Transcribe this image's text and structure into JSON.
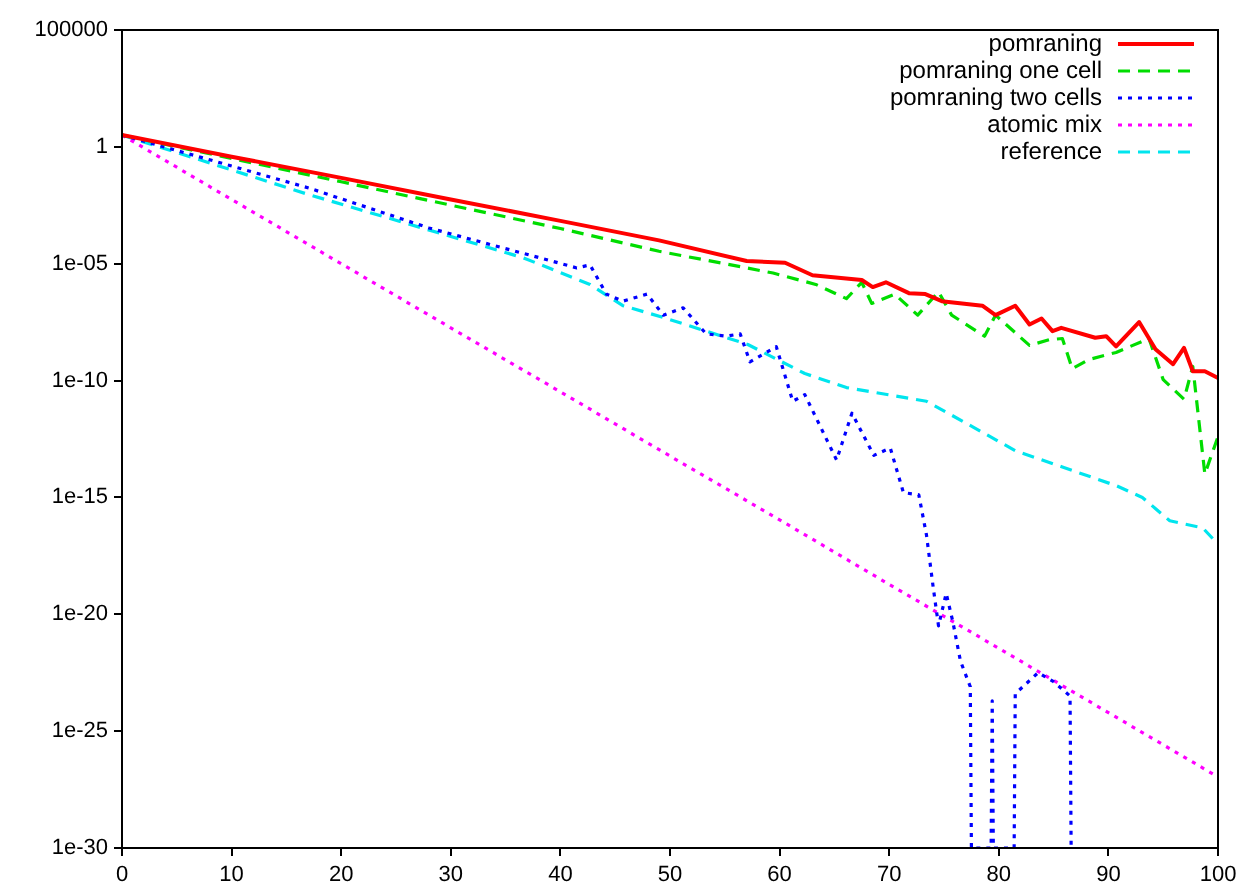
{
  "chart_data": {
    "type": "line",
    "log": "y",
    "grid": false,
    "legend": "top right",
    "marker": "none",
    "xlim": [
      0,
      100
    ],
    "xticks": [
      0,
      10,
      20,
      30,
      40,
      50,
      60,
      70,
      80,
      90,
      100
    ],
    "ylim": [
      1e-30,
      100000
    ],
    "yticks": [
      {
        "value": 1e-30,
        "label": "1e-30"
      },
      {
        "value": 1e-25,
        "label": "1e-25"
      },
      {
        "value": 1e-20,
        "label": "1e-20"
      },
      {
        "value": 1e-15,
        "label": "1e-15"
      },
      {
        "value": 1e-10,
        "label": "1e-10"
      },
      {
        "value": 1e-05,
        "label": "1e-05"
      },
      1,
      100000
    ],
    "series": [
      {
        "name": "pomraning",
        "color": "#ff0000",
        "line_style": "solid",
        "x": [
          0,
          10,
          20,
          30,
          40,
          49,
          57,
          60.5,
          63,
          67.5,
          68.5,
          69.7,
          71.8,
          73.3,
          74.8,
          78.5,
          79.7,
          81.5,
          82.8,
          83.9,
          84.9,
          85.7,
          88.8,
          89.8,
          90.7,
          92.8,
          94.3,
          95.9,
          96.9,
          97.7,
          98.8,
          100
        ],
        "values": [
          3.2,
          0.38,
          0.047,
          0.0056,
          0.00068,
          0.0001,
          1.3e-05,
          1.1e-05,
          3.2e-06,
          2e-06,
          1e-06,
          1.6e-06,
          5.5e-07,
          5e-07,
          2.5e-07,
          1.6e-07,
          6.3e-08,
          1.6e-07,
          2.5e-08,
          4.5e-08,
          1.3e-08,
          1.8e-08,
          6.8e-09,
          7.9e-09,
          2.9e-09,
          3.2e-08,
          2.2e-09,
          5e-10,
          2.5e-09,
          2.5e-10,
          2.5e-10,
          1.3e-10
        ]
      },
      {
        "name": "pomraning one cell",
        "color": "#00dd00",
        "line_style": "dashed",
        "x": [
          0,
          10,
          20,
          30,
          40,
          49,
          55,
          59.4,
          63.3,
          66.1,
          67.5,
          68.4,
          70.5,
          72.6,
          74.5,
          75.7,
          78.7,
          79.7,
          82.8,
          84.6,
          85.8,
          86.7,
          88.2,
          90.7,
          93.7,
          95,
          96.9,
          97.7,
          98.8,
          100
        ],
        "values": [
          3.2,
          0.32,
          0.032,
          0.0032,
          0.00032,
          3.4e-05,
          1e-05,
          4e-06,
          1.3e-06,
          3.2e-07,
          1.6e-06,
          2e-07,
          5e-07,
          6.3e-08,
          6.3e-07,
          6.3e-08,
          7.9e-09,
          6.3e-08,
          3.2e-09,
          5.6e-09,
          6.3e-09,
          3.2e-10,
          7.9e-10,
          1.6e-09,
          6.3e-09,
          1.1e-10,
          1.6e-11,
          4e-10,
          1e-14,
          4e-13
        ]
      },
      {
        "name": "pomraning two cells",
        "color": "#0000ff",
        "line_style": "dotted",
        "x": [
          0,
          8,
          17.1,
          28,
          33,
          38.1,
          41.5,
          42.7,
          44.2,
          45.7,
          47.9,
          49.4,
          51.2,
          53.3,
          55.1,
          56.4,
          57.3,
          59.7,
          61.2,
          62.3,
          65.2,
          66.6,
          68.6,
          70.1,
          71.3,
          72.7,
          73.4,
          74,
          74.5,
          75.2,
          75.8,
          76.5,
          77.4,
          77.5,
          79.3,
          79.4,
          79.5,
          81.4,
          81.5,
          83.6,
          85,
          86.5,
          86.6
        ],
        "values": [
          3.2,
          0.28,
          0.017,
          0.00034,
          7.9e-05,
          1.8e-05,
          6.6e-06,
          8.9e-06,
          5e-07,
          2.5e-07,
          5e-07,
          6.3e-08,
          1.3e-07,
          1e-08,
          7.9e-09,
          1e-08,
          6.3e-10,
          2.8e-09,
          1.3e-11,
          2.5e-11,
          4e-14,
          4e-12,
          6.3e-14,
          1.3e-13,
          1.6e-15,
          1.3e-15,
          2.5e-17,
          1.6e-19,
          3.2e-21,
          7.9e-20,
          5e-21,
          1e-22,
          7.9e-24,
          1e-30,
          1e-30,
          2e-24,
          1e-30,
          1e-30,
          4e-24,
          3.2e-23,
          1.3e-23,
          3.2e-24,
          1e-30
        ]
      },
      {
        "name": "atomic mix",
        "color": "#ff00ff",
        "line_style": "dotted",
        "x": [
          0,
          10,
          20,
          30,
          40,
          50,
          60,
          70,
          80,
          90,
          100
        ],
        "values": [
          3.2,
          0.0056,
          1e-05,
          1.8e-08,
          3.3e-11,
          5.9e-14,
          1.1e-16,
          1.9e-19,
          3.5e-22,
          6.2e-25,
          1.1e-27
        ]
      },
      {
        "name": "reference",
        "color": "#00e5ee",
        "line_style": "dashed",
        "x": [
          0,
          17.1,
          36.6,
          42.7,
          45.7,
          49.4,
          57.1,
          62.3,
          66.1,
          73.4,
          77.7,
          81.5,
          85.8,
          90.7,
          93.1,
          95.6,
          98.6,
          100
        ],
        "values": [
          3.2,
          0.0089,
          1.8e-05,
          1.3e-06,
          1.6e-07,
          5e-08,
          3.5e-09,
          2e-10,
          5e-11,
          1.3e-11,
          1e-12,
          1e-13,
          2e-14,
          3.2e-15,
          1e-15,
          1e-16,
          5e-17,
          1e-17
        ]
      }
    ]
  }
}
